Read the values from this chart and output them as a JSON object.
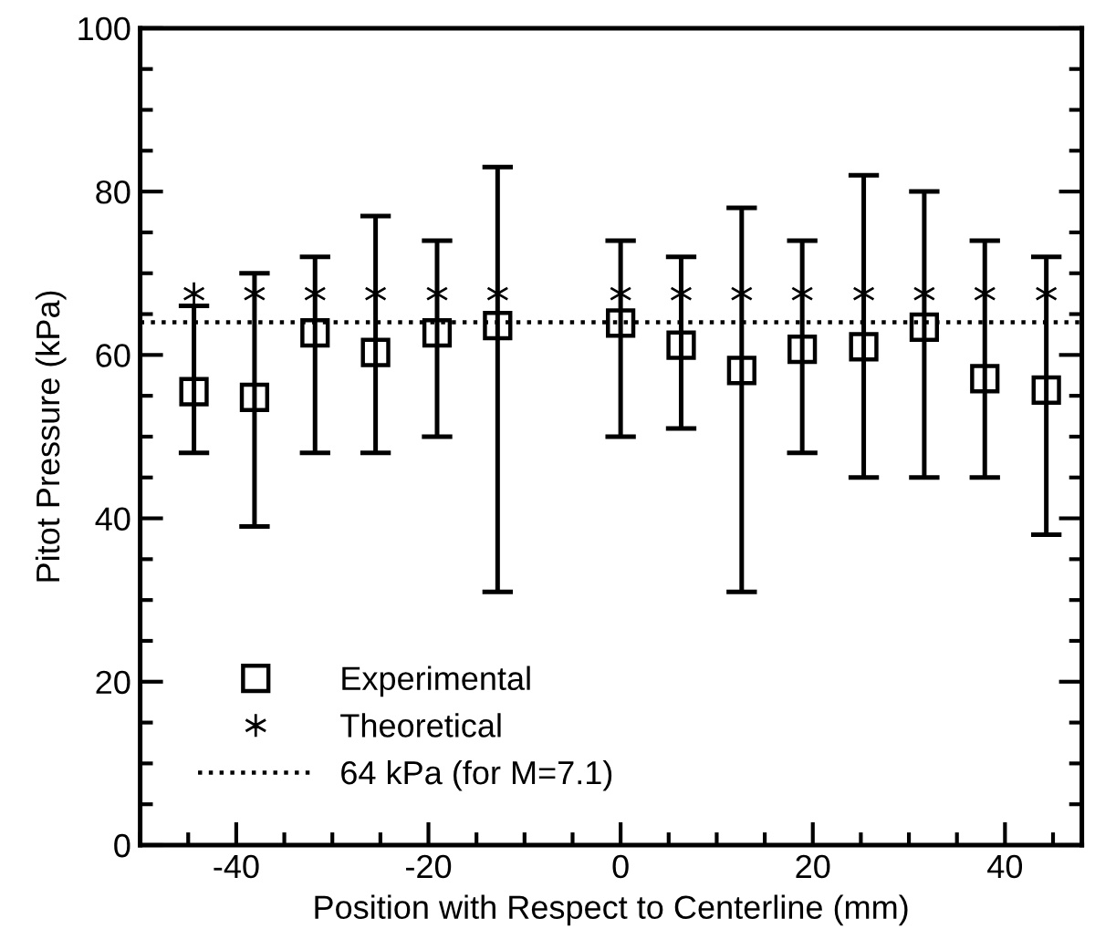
{
  "chart_data": {
    "type": "scatter",
    "xlabel": "Position with Respect to Centerline (mm)",
    "ylabel": "Pitot Pressure (kPa)",
    "x": [
      -44.4,
      -38.1,
      -31.8,
      -25.5,
      -19.1,
      -12.8,
      0,
      6.3,
      12.6,
      18.9,
      25.3,
      31.6,
      37.9,
      44.3
    ],
    "series": [
      {
        "name": "Experimental",
        "color": "#000000",
        "marker": "square",
        "values": [
          55.5,
          54.8,
          62.7,
          60.3,
          62.7,
          63.6,
          63.9,
          61.2,
          58.1,
          60.7,
          61.0,
          63.4,
          57.1,
          55.7
        ],
        "errors": [
          [
            48,
            66
          ],
          [
            39,
            70
          ],
          [
            48,
            72
          ],
          [
            48,
            77
          ],
          [
            50,
            74
          ],
          [
            31,
            83
          ],
          [
            50,
            74
          ],
          [
            51,
            72
          ],
          [
            31,
            78
          ],
          [
            48,
            74
          ],
          [
            45,
            82
          ],
          [
            45,
            80
          ],
          [
            45,
            74
          ],
          [
            38,
            72
          ]
        ]
      },
      {
        "name": "Theoretical",
        "color": "#000000",
        "marker": "cross",
        "values": [
          67.5,
          67.5,
          67.5,
          67.5,
          67.5,
          67.5,
          67.5,
          67.5,
          67.5,
          67.5,
          67.5,
          67.5,
          67.5,
          67.5
        ]
      }
    ],
    "ref_lines": [
      {
        "axis": "y",
        "value": 64,
        "label": "64 kPa (for M=7.1)",
        "color": "#000000",
        "line_style": "dotted"
      }
    ],
    "xlim": [
      -50,
      48
    ],
    "xticks": [
      -40,
      -20,
      0,
      20,
      40
    ],
    "ylim": [
      0,
      100
    ],
    "yticks": [
      0,
      20,
      40,
      60,
      80,
      100
    ],
    "grid": false,
    "legend": "bottom left"
  }
}
